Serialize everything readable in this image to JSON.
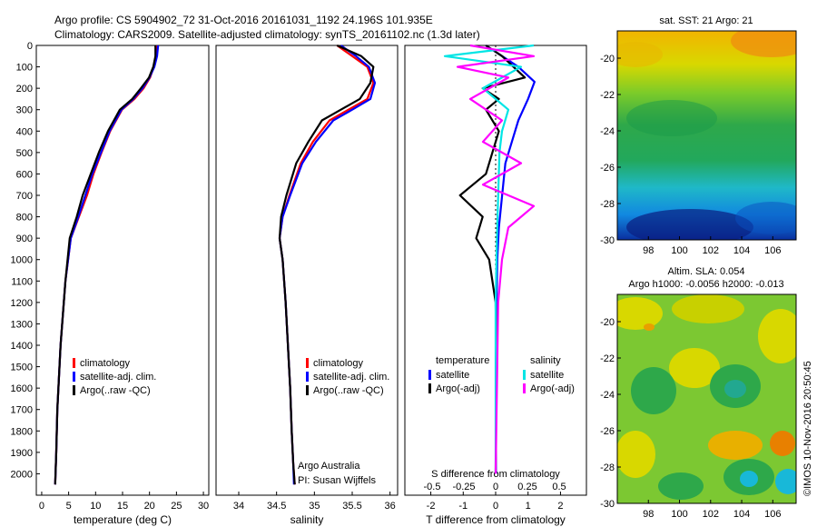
{
  "header": {
    "line1": "Argo profile: CS 5904902_72 31-Oct-2016 20161031_1192 24.196S 101.935E",
    "line2": "Climatology: CARS2009. Satellite-adjusted climatology: synTS_20161102.nc (1.3d later)"
  },
  "colors": {
    "climatology": "#ff0000",
    "satellite": "#0000ff",
    "argo": "#000000",
    "sat_salinity": "#00e5e5",
    "argo_salinity": "#ff00ff"
  },
  "chart_data": [
    {
      "type": "line",
      "id": "temperature",
      "xlabel": "temperature (deg C)",
      "ylabel": "",
      "xlim": [
        -1,
        31
      ],
      "ylim": [
        2100,
        0
      ],
      "xticks": [
        0,
        5,
        10,
        15,
        20,
        25,
        30
      ],
      "yticks": [
        0,
        100,
        200,
        300,
        400,
        500,
        600,
        700,
        800,
        900,
        1000,
        1100,
        1200,
        1300,
        1400,
        1500,
        1600,
        1700,
        1800,
        1900,
        2000
      ],
      "legend": [
        "climatology",
        "satellite-adj. clim.",
        "Argo(..raw -QC)"
      ],
      "series": [
        {
          "name": "climatology",
          "color": "#ff0000",
          "x": [
            21.3,
            21.2,
            20.8,
            20.1,
            18.9,
            17.2,
            14.9,
            12.7,
            11.1,
            9.6,
            8.4,
            6.9,
            5.4,
            4.9,
            4.4,
            4.1,
            3.8,
            3.5,
            3.3,
            3.1,
            2.9,
            2.7,
            2.5
          ],
          "y": [
            0,
            50,
            100,
            150,
            200,
            250,
            300,
            400,
            500,
            600,
            700,
            800,
            900,
            1000,
            1100,
            1200,
            1300,
            1400,
            1500,
            1600,
            1700,
            1900,
            2050
          ]
        },
        {
          "name": "satellite-adj. clim.",
          "color": "#0000ff",
          "x": [
            21.6,
            21.4,
            20.9,
            20.0,
            18.7,
            17.0,
            14.8,
            12.6,
            11.0,
            9.4,
            8.1,
            6.8,
            5.4,
            4.9,
            4.4,
            4.1,
            3.8,
            3.5,
            3.3,
            3.1,
            2.9,
            2.7,
            2.5
          ],
          "y": [
            0,
            50,
            100,
            150,
            200,
            250,
            300,
            400,
            500,
            600,
            700,
            800,
            900,
            1000,
            1100,
            1200,
            1300,
            1400,
            1500,
            1600,
            1700,
            1900,
            2050
          ]
        },
        {
          "name": "Argo(..raw -QC)",
          "color": "#000000",
          "x": [
            21.1,
            21.1,
            20.7,
            19.9,
            18.4,
            16.8,
            14.5,
            12.3,
            10.6,
            9.1,
            7.6,
            6.5,
            5.2,
            4.8,
            4.4,
            4.1,
            3.8,
            3.5,
            3.3,
            3.1,
            2.9,
            2.7,
            2.5
          ],
          "y": [
            0,
            50,
            100,
            150,
            200,
            250,
            300,
            400,
            500,
            600,
            700,
            800,
            900,
            1000,
            1100,
            1200,
            1300,
            1400,
            1500,
            1600,
            1700,
            1900,
            2050
          ]
        }
      ]
    },
    {
      "type": "line",
      "id": "salinity",
      "xlabel": "salinity",
      "xlim": [
        33.7,
        36.1
      ],
      "ylim": [
        2100,
        0
      ],
      "xticks": [
        34,
        34.5,
        35,
        35.5,
        36
      ],
      "legend": [
        "climatology",
        "satellite-adj. clim.",
        "Argo(..raw -QC)"
      ],
      "annotations": [
        "Argo Australia",
        "PI: Susan Wijffels"
      ],
      "series": [
        {
          "name": "climatology",
          "color": "#ff0000",
          "x": [
            35.3,
            35.5,
            35.7,
            35.78,
            35.7,
            35.45,
            35.2,
            34.98,
            34.82,
            34.67,
            34.58,
            34.54,
            34.58,
            34.62,
            34.65,
            34.68,
            34.7,
            34.72,
            34.74
          ],
          "y": [
            0,
            50,
            100,
            175,
            250,
            300,
            350,
            450,
            550,
            700,
            800,
            900,
            1000,
            1200,
            1400,
            1600,
            1800,
            1950,
            2050
          ]
        },
        {
          "name": "satellite-adj. clim.",
          "color": "#0000ff",
          "x": [
            35.35,
            35.55,
            35.72,
            35.8,
            35.74,
            35.5,
            35.25,
            35.02,
            34.84,
            34.68,
            34.58,
            34.54,
            34.58,
            34.62,
            34.65,
            34.68,
            34.7,
            34.72,
            34.73
          ],
          "y": [
            0,
            50,
            100,
            175,
            250,
            300,
            350,
            450,
            550,
            700,
            800,
            900,
            1000,
            1200,
            1400,
            1600,
            1800,
            1950,
            2050
          ]
        },
        {
          "name": "Argo(..raw -QC)",
          "color": "#000000",
          "x": [
            35.3,
            35.62,
            35.78,
            35.74,
            35.6,
            35.35,
            35.1,
            34.92,
            34.76,
            34.63,
            34.56,
            34.54,
            34.58,
            34.62,
            34.65,
            34.68,
            34.7,
            34.72,
            34.74
          ],
          "y": [
            0,
            50,
            100,
            175,
            250,
            300,
            350,
            450,
            550,
            700,
            800,
            900,
            1000,
            1200,
            1400,
            1600,
            1800,
            1950,
            2050
          ]
        }
      ]
    },
    {
      "type": "line",
      "id": "difference",
      "xlabel": "T difference from climatology",
      "title2": "S difference from climatology",
      "xlim": [
        -2.8,
        2.8
      ],
      "ylim": [
        2100,
        0
      ],
      "xticks": [
        -2,
        -1,
        0,
        1,
        2
      ],
      "x2ticks": [
        -0.5,
        -0.25,
        0,
        0.25,
        0.5
      ],
      "legend_groups": [
        "temperature",
        "salinity"
      ],
      "legend": [
        "satellite",
        "Argo(-adj)",
        "satellite",
        "Argo(-adj)"
      ],
      "series": [
        {
          "name": "satellite",
          "group": "temperature",
          "color": "#0000ff",
          "x": [
            -0.3,
            0.2,
            0.7,
            1.2,
            1.0,
            0.7,
            0.5,
            0.3,
            0.2,
            0.1,
            0.05,
            0.03,
            0.02,
            0.02,
            0.01,
            0.01
          ],
          "y": [
            0,
            50,
            100,
            170,
            250,
            350,
            450,
            550,
            700,
            850,
            1000,
            1200,
            1400,
            1600,
            1800,
            2000
          ]
        },
        {
          "name": "Argo(-adj)",
          "group": "temperature",
          "color": "#000000",
          "x": [
            -0.3,
            0.2,
            0.9,
            -0.4,
            0.1,
            -0.3,
            0.1,
            -0.1,
            -0.3,
            -1.1,
            -0.4,
            -0.6,
            -0.2,
            -0.1,
            0,
            0.02,
            0
          ],
          "y": [
            0,
            50,
            150,
            200,
            250,
            300,
            400,
            500,
            600,
            700,
            800,
            900,
            1000,
            1100,
            1200,
            1500,
            2000
          ]
        },
        {
          "name": "satellite",
          "group": "salinity",
          "color": "#00e5e5",
          "x": [
            0.3,
            -0.4,
            0.2,
            -0.1,
            0.1,
            0.05,
            0.03,
            0.02,
            0.01,
            0,
            0
          ],
          "y": [
            0,
            50,
            100,
            200,
            300,
            400,
            500,
            700,
            900,
            1200,
            2000
          ]
        },
        {
          "name": "Argo(-adj)",
          "group": "salinity",
          "color": "#ff00ff",
          "x": [
            -0.2,
            0.3,
            -0.3,
            0.1,
            -0.2,
            0.05,
            -0.1,
            0.2,
            -0.1,
            0.3,
            0.1,
            0.05,
            0.02,
            0
          ],
          "y": [
            0,
            50,
            100,
            150,
            250,
            350,
            450,
            550,
            650,
            750,
            850,
            1000,
            1200,
            2000
          ]
        }
      ]
    },
    {
      "type": "heatmap",
      "id": "sst_map",
      "title": "sat. SST: 21  Argo: 21",
      "xlim": [
        96,
        107.5
      ],
      "ylim": [
        -30,
        -18.5
      ],
      "xticks": [
        98,
        100,
        102,
        104,
        106
      ],
      "yticks": [
        -20,
        -22,
        -24,
        -26,
        -28,
        -30
      ]
    },
    {
      "type": "heatmap",
      "id": "sla_map",
      "title": "Altim. SLA: 0.054",
      "subtitle": "Argo h1000: -0.0056  h2000: -0.013",
      "xlim": [
        96,
        107.5
      ],
      "ylim": [
        -30,
        -18.5
      ],
      "xticks": [
        98,
        100,
        102,
        104,
        106
      ],
      "yticks": [
        -20,
        -22,
        -24,
        -26,
        -28,
        -30
      ]
    }
  ],
  "footer": {
    "stamp": "©IMOS 10-Nov-2016 20:50:45"
  }
}
